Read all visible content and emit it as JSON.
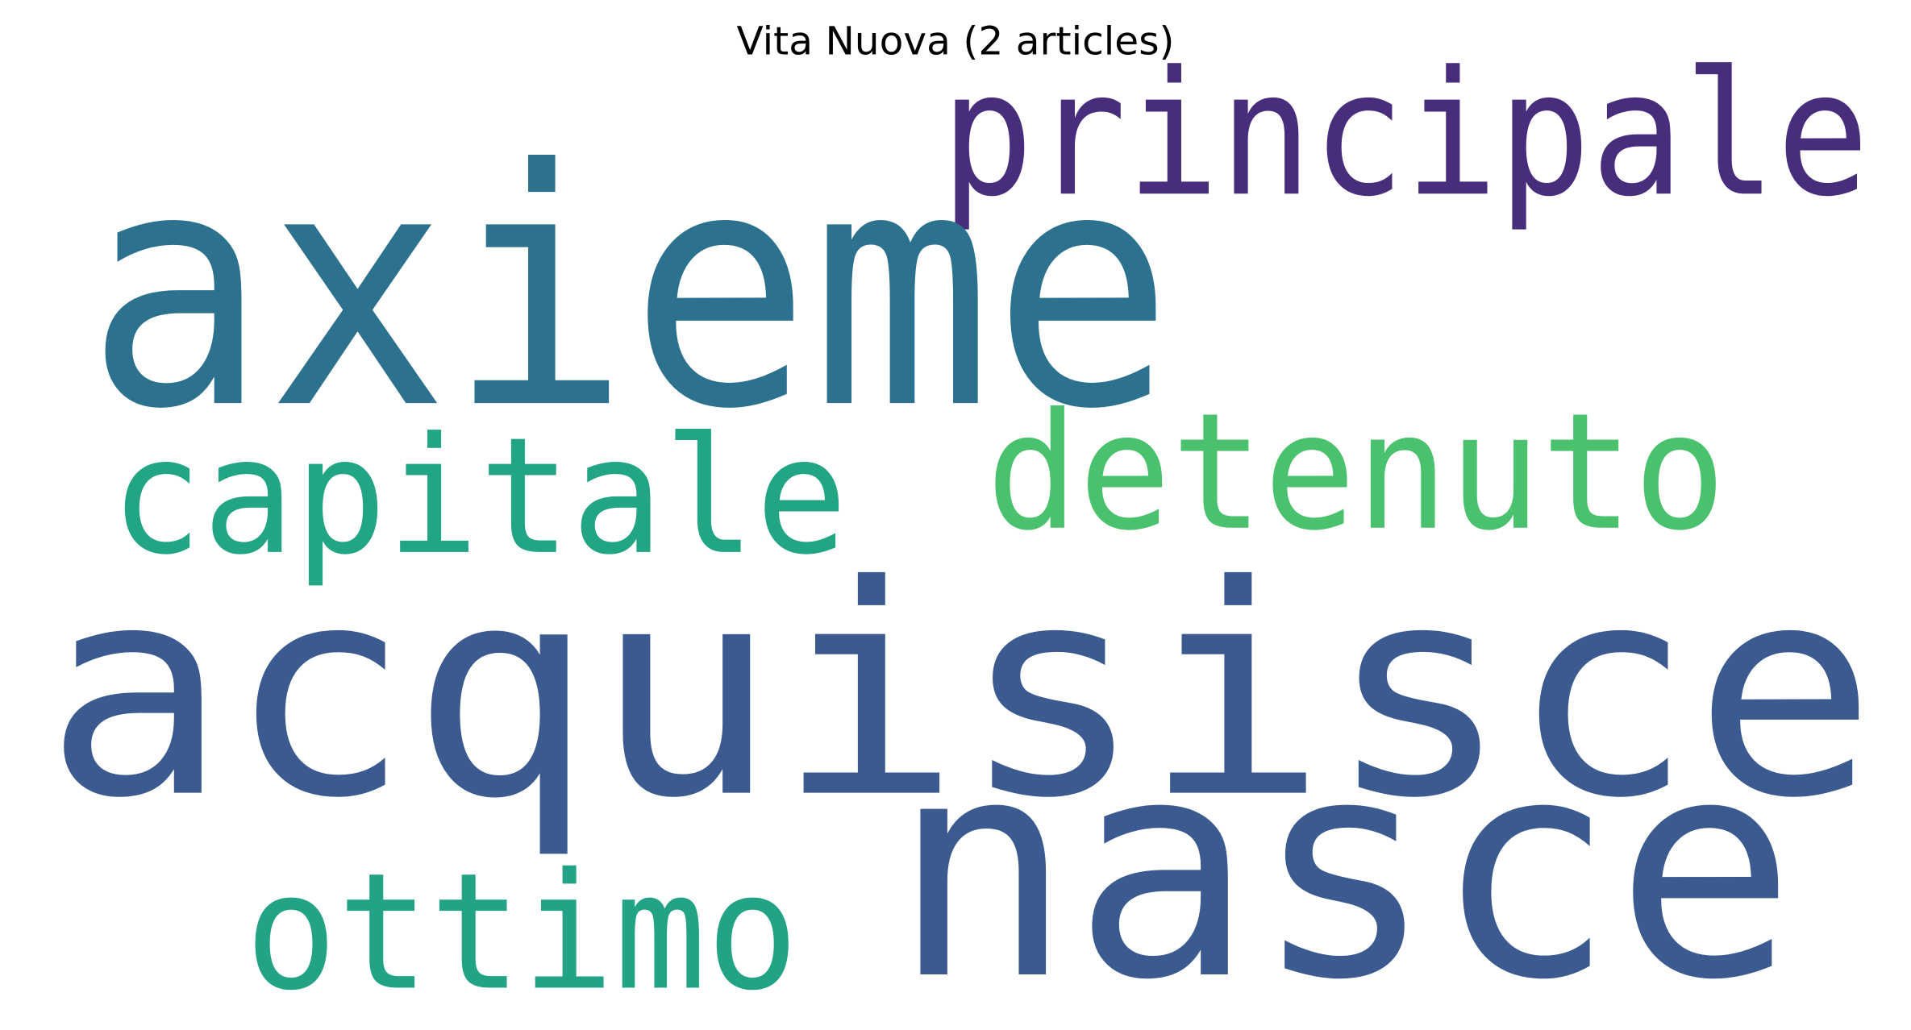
{
  "title": "Vita Nuova (2 articles)",
  "words": [
    {
      "key": "principale",
      "text": "principale",
      "color": "#472d7b"
    },
    {
      "key": "axieme",
      "text": "axieme",
      "color": "#2c728e"
    },
    {
      "key": "capitale",
      "text": "capitale",
      "color": "#21a585"
    },
    {
      "key": "detenuto",
      "text": "detenuto",
      "color": "#4ac16d"
    },
    {
      "key": "acquisisce",
      "text": "acquisisce",
      "color": "#3b5a8f"
    },
    {
      "key": "nasce",
      "text": "nasce",
      "color": "#3b5a8f"
    },
    {
      "key": "ottimo",
      "text": "ottimo",
      "color": "#22a385"
    }
  ]
}
